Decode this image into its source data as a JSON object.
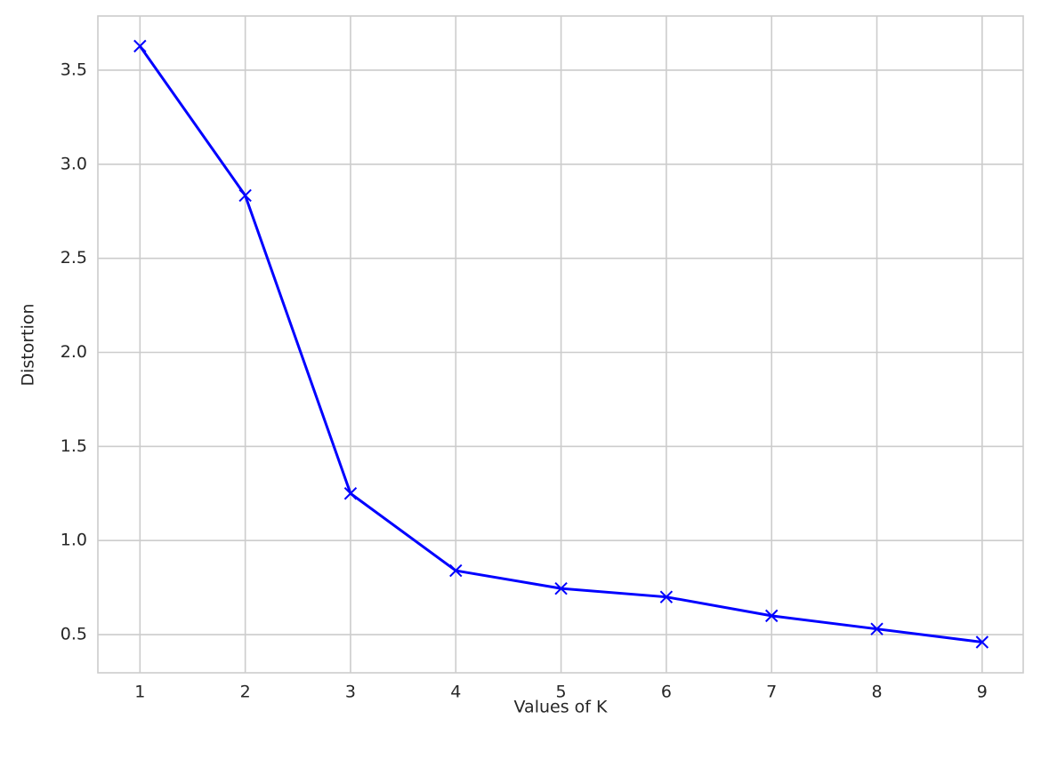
{
  "chart_data": {
    "type": "line",
    "xlabel": "Values of K",
    "ylabel": "Distortion",
    "x": [
      1,
      2,
      3,
      4,
      5,
      6,
      7,
      8,
      9
    ],
    "values": [
      3.628,
      2.834,
      1.25,
      0.84,
      0.745,
      0.7,
      0.6,
      0.53,
      0.46
    ],
    "color": "#0000ff",
    "marker": "x",
    "xlim": [
      0.6,
      9.39
    ],
    "ylim": [
      0.297,
      3.788
    ],
    "xticks": [
      1,
      2,
      3,
      4,
      5,
      6,
      7,
      8,
      9
    ],
    "yticks": [
      0.5,
      {
        "value": 1,
        "label": "1.0"
      },
      1.5,
      {
        "value": 2,
        "label": "2.0"
      },
      2.5,
      {
        "value": 3,
        "label": "3.0"
      },
      3.5
    ],
    "grid": true
  }
}
